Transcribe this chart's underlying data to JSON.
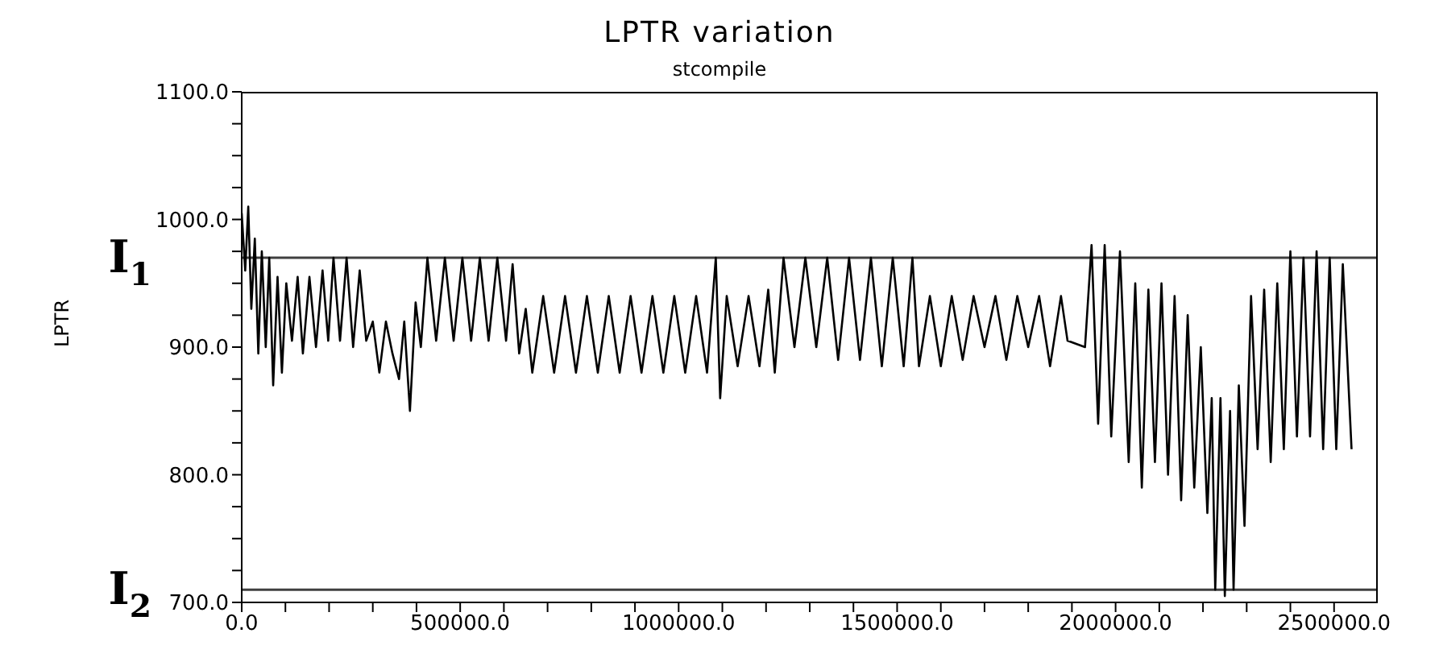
{
  "chart_data": {
    "type": "line",
    "title": "LPTR variation",
    "subtitle": "stcompile",
    "ylabel": "LPTR",
    "x": [
      0,
      8000,
      15000,
      22000,
      30000,
      38000,
      46000,
      55000,
      63000,
      72000,
      82000,
      92000,
      102000,
      115000,
      128000,
      140000,
      155000,
      170000,
      185000,
      198000,
      210000,
      225000,
      240000,
      255000,
      270000,
      285000,
      300000,
      315000,
      330000,
      345000,
      360000,
      372000,
      385000,
      398000,
      410000,
      425000,
      445000,
      465000,
      485000,
      505000,
      525000,
      545000,
      565000,
      585000,
      605000,
      620000,
      635000,
      650000,
      665000,
      690000,
      715000,
      740000,
      765000,
      790000,
      815000,
      840000,
      865000,
      890000,
      915000,
      940000,
      965000,
      990000,
      1015000,
      1040000,
      1065000,
      1085000,
      1095000,
      1110000,
      1135000,
      1160000,
      1185000,
      1205000,
      1220000,
      1240000,
      1265000,
      1290000,
      1315000,
      1340000,
      1365000,
      1390000,
      1415000,
      1440000,
      1465000,
      1490000,
      1515000,
      1535000,
      1550000,
      1575000,
      1600000,
      1625000,
      1650000,
      1675000,
      1700000,
      1725000,
      1750000,
      1775000,
      1800000,
      1825000,
      1850000,
      1875000,
      1890000,
      1930000,
      1945000,
      1960000,
      1975000,
      1990000,
      2010000,
      2030000,
      2045000,
      2060000,
      2075000,
      2090000,
      2105000,
      2120000,
      2135000,
      2150000,
      2165000,
      2180000,
      2195000,
      2210000,
      2220000,
      2228000,
      2240000,
      2250000,
      2262000,
      2270000,
      2282000,
      2295000,
      2310000,
      2325000,
      2340000,
      2355000,
      2370000,
      2385000,
      2400000,
      2415000,
      2430000,
      2445000,
      2460000,
      2475000,
      2490000,
      2505000,
      2520000,
      2540000
    ],
    "series": [
      {
        "color": "#000000",
        "values": [
          1005,
          960,
          1010,
          930,
          985,
          895,
          975,
          900,
          970,
          870,
          955,
          880,
          950,
          905,
          955,
          895,
          955,
          900,
          960,
          905,
          970,
          905,
          970,
          900,
          960,
          905,
          920,
          880,
          920,
          895,
          875,
          920,
          850,
          935,
          900,
          970,
          905,
          970,
          905,
          970,
          905,
          970,
          905,
          970,
          905,
          965,
          895,
          930,
          880,
          940,
          880,
          940,
          880,
          940,
          880,
          940,
          880,
          940,
          880,
          940,
          880,
          940,
          880,
          940,
          880,
          970,
          860,
          940,
          885,
          940,
          885,
          945,
          880,
          970,
          900,
          970,
          900,
          970,
          890,
          970,
          890,
          970,
          885,
          970,
          885,
          970,
          885,
          940,
          885,
          940,
          890,
          940,
          900,
          940,
          890,
          940,
          900,
          940,
          885,
          940,
          905,
          900,
          980,
          840,
          980,
          830,
          975,
          810,
          950,
          790,
          945,
          810,
          950,
          800,
          940,
          780,
          925,
          790,
          900,
          770,
          860,
          710,
          860,
          705,
          850,
          710,
          870,
          760,
          940,
          820,
          945,
          810,
          950,
          820,
          975,
          830,
          970,
          830,
          975,
          820,
          970,
          820,
          965,
          820
        ]
      }
    ],
    "xlim": [
      0,
      2600000
    ],
    "xticks": [
      {
        "value": 0,
        "label": "0.0"
      },
      {
        "value": 100000,
        "label": null
      },
      {
        "value": 200000,
        "label": null
      },
      {
        "value": 300000,
        "label": null
      },
      {
        "value": 400000,
        "label": null
      },
      {
        "value": 500000,
        "label": "500000.0"
      },
      {
        "value": 600000,
        "label": null
      },
      {
        "value": 700000,
        "label": null
      },
      {
        "value": 800000,
        "label": null
      },
      {
        "value": 900000,
        "label": null
      },
      {
        "value": 1000000,
        "label": "1000000.0"
      },
      {
        "value": 1100000,
        "label": null
      },
      {
        "value": 1200000,
        "label": null
      },
      {
        "value": 1300000,
        "label": null
      },
      {
        "value": 1400000,
        "label": null
      },
      {
        "value": 1500000,
        "label": "1500000.0"
      },
      {
        "value": 1600000,
        "label": null
      },
      {
        "value": 1700000,
        "label": null
      },
      {
        "value": 1800000,
        "label": null
      },
      {
        "value": 1900000,
        "label": null
      },
      {
        "value": 2000000,
        "label": "2000000.0"
      },
      {
        "value": 2100000,
        "label": null
      },
      {
        "value": 2200000,
        "label": null
      },
      {
        "value": 2300000,
        "label": null
      },
      {
        "value": 2400000,
        "label": null
      },
      {
        "value": 2500000,
        "label": "2500000.0"
      }
    ],
    "ylim": [
      700,
      1100
    ],
    "yticks": [
      {
        "value": 700,
        "label": "700.0"
      },
      {
        "value": 725,
        "label": null
      },
      {
        "value": 750,
        "label": null
      },
      {
        "value": 775,
        "label": null
      },
      {
        "value": 800,
        "label": "800.0"
      },
      {
        "value": 825,
        "label": null
      },
      {
        "value": 850,
        "label": null
      },
      {
        "value": 875,
        "label": null
      },
      {
        "value": 900,
        "label": "900.0"
      },
      {
        "value": 925,
        "label": null
      },
      {
        "value": 950,
        "label": null
      },
      {
        "value": 975,
        "label": null
      },
      {
        "value": 1000,
        "label": "1000.0"
      },
      {
        "value": 1025,
        "label": null
      },
      {
        "value": 1050,
        "label": null
      },
      {
        "value": 1075,
        "label": null
      },
      {
        "value": 1100,
        "label": "1100.0"
      }
    ],
    "ref_lines": [
      {
        "axis": "y",
        "value": 970,
        "label": "I$_{1}$",
        "color": "#404040"
      },
      {
        "axis": "y",
        "value": 710,
        "label": "I$_{2}$",
        "color": "#404040"
      }
    ],
    "marker": "none",
    "line_style": "solid",
    "grid": false,
    "legend": false
  }
}
